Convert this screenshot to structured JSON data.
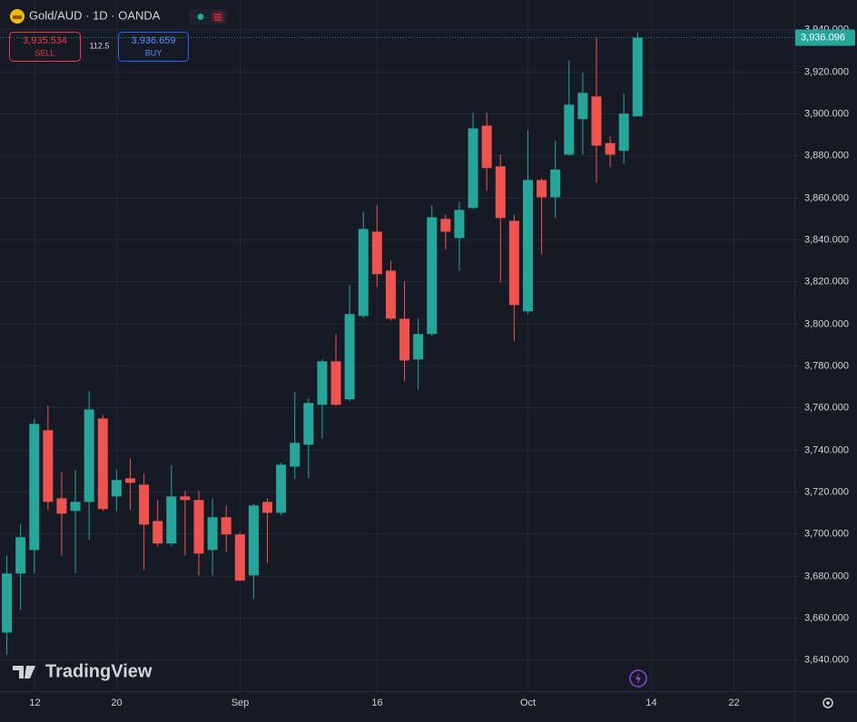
{
  "chart_data": {
    "type": "candlestick",
    "title": "Gold/AUD · 1D · OANDA",
    "sell": {
      "price": "3,935.534",
      "label": "SELL"
    },
    "spread": "112.5",
    "buy": {
      "price": "3,936.659",
      "label": "BUY"
    },
    "last_price": {
      "value": 3936.096,
      "label": "3,936.096"
    },
    "watermark": "TradingView",
    "up_color": "#26a69a",
    "down_color": "#ef5350",
    "grid": true,
    "categories": [
      null,
      null,
      "12",
      null,
      null,
      null,
      null,
      null,
      "20",
      null,
      null,
      null,
      null,
      null,
      null,
      null,
      null,
      "Sep",
      null,
      null,
      null,
      null,
      null,
      null,
      null,
      null,
      null,
      "16",
      null,
      null,
      null,
      null,
      null,
      null,
      null,
      null,
      null,
      null,
      "Oct",
      null,
      null,
      null,
      null,
      null,
      null,
      null,
      null,
      "14",
      null,
      null,
      null,
      null,
      null,
      "22",
      null,
      null,
      null,
      null
    ],
    "open": [
      3652.9,
      3681.0,
      3692.2,
      3749.2,
      3716.8,
      3710.8,
      3715.1,
      3754.8,
      3717.7,
      3726.3,
      3723.3,
      3706.0,
      3695.3,
      3717.7,
      3716.0,
      3692.2,
      3707.8,
      3699.6,
      3680.1,
      3715.1,
      3709.9,
      3731.9,
      3742.3,
      3761.3,
      3782.0,
      3763.9,
      3803.6,
      3843.7,
      3825.2,
      3802.3,
      3782.9,
      3795.0,
      3849.8,
      3840.7,
      3855.0,
      3894.2,
      3874.8,
      3848.9,
      3805.8,
      3868.3,
      3860.1,
      3880.4,
      3897.3,
      3908.1,
      3885.9,
      3882.2,
      3898.6,
      null,
      null,
      null,
      null,
      null,
      null,
      null,
      null,
      null,
      null,
      null
    ],
    "high": [
      3689.6,
      3704.3,
      3754.4,
      3760.9,
      3729.4,
      3730.2,
      3767.8,
      3756.5,
      3730.2,
      3735.8,
      3728.5,
      3716.0,
      3732.4,
      3720.3,
      3720.3,
      3716.8,
      3713.4,
      3700.4,
      3714.2,
      3716.8,
      3733.7,
      3767.3,
      3764.3,
      3782.9,
      3795.0,
      3818.3,
      3853.2,
      3856.3,
      3829.9,
      3820.0,
      3802.3,
      3856.3,
      3851.9,
      3858.0,
      3900.3,
      3900.3,
      3880.4,
      3851.9,
      3892.1,
      3869.2,
      3886.9,
      3925.3,
      3919.3,
      3936.1,
      3889.1,
      3909.4,
      3938.5,
      null,
      null,
      null,
      null,
      null,
      null,
      null,
      null,
      null,
      null,
      null
    ],
    "low": [
      3642.2,
      3663.7,
      3681.0,
      3711.2,
      3689.6,
      3681.0,
      3697.0,
      3710.8,
      3710.8,
      3711.2,
      3682.7,
      3694.0,
      3694.0,
      3689.6,
      3680.1,
      3680.1,
      3691.4,
      3677.6,
      3668.9,
      3686.2,
      3708.6,
      3725.9,
      3726.3,
      3745.3,
      3760.9,
      3763.0,
      3802.7,
      3817.4,
      3801.4,
      3772.5,
      3768.6,
      3794.1,
      3835.1,
      3825.2,
      3854.5,
      3863.2,
      3819.6,
      3791.5,
      3804.5,
      3832.9,
      3850.2,
      3880.0,
      3880.4,
      3867.0,
      3874.4,
      3876.1,
      3898.6,
      null,
      null,
      null,
      null,
      null,
      null,
      null,
      null,
      null,
      null,
      null
    ],
    "close": [
      3681.0,
      3698.3,
      3752.2,
      3715.1,
      3709.5,
      3715.1,
      3759.1,
      3711.7,
      3725.5,
      3724.2,
      3704.3,
      3695.3,
      3717.7,
      3716.0,
      3690.5,
      3707.8,
      3699.6,
      3677.6,
      3713.4,
      3709.9,
      3732.8,
      3743.2,
      3762.2,
      3782.0,
      3761.3,
      3804.5,
      3845.0,
      3823.5,
      3802.3,
      3782.4,
      3795.0,
      3850.6,
      3843.7,
      3854.1,
      3892.9,
      3874.0,
      3850.2,
      3808.8,
      3868.3,
      3860.1,
      3873.3,
      3904.2,
      3909.8,
      3884.7,
      3880.4,
      3899.9,
      3936.096,
      null,
      null,
      null,
      null,
      null,
      null,
      null,
      null,
      null,
      null,
      null
    ],
    "ylim": [
      3625,
      3954
    ],
    "yticks": [
      {
        "value": 3640,
        "label": "3,640.000"
      },
      {
        "value": 3660,
        "label": "3,660.000"
      },
      {
        "value": 3680,
        "label": "3,680.000"
      },
      {
        "value": 3700,
        "label": "3,700.000"
      },
      {
        "value": 3720,
        "label": "3,720.000"
      },
      {
        "value": 3740,
        "label": "3,740.000"
      },
      {
        "value": 3760,
        "label": "3,760.000"
      },
      {
        "value": 3780,
        "label": "3,780.000"
      },
      {
        "value": 3800,
        "label": "3,800.000"
      },
      {
        "value": 3820,
        "label": "3,820.000"
      },
      {
        "value": 3840,
        "label": "3,840.000"
      },
      {
        "value": 3860,
        "label": "3,860.000"
      },
      {
        "value": 3880,
        "label": "3,880.000"
      },
      {
        "value": 3900,
        "label": "3,900.000"
      },
      {
        "value": 3920,
        "label": "3,920.000"
      },
      {
        "value": 3940,
        "label": "3,940.000"
      }
    ]
  }
}
